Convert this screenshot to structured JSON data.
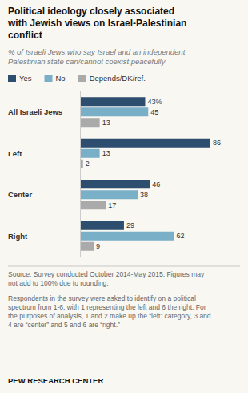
{
  "chart_data": {
    "type": "bar",
    "orientation": "horizontal",
    "title": "Political ideology closely associated\nwith Jewish views on Israel-Palestinian\nconflict",
    "subtitle": "% of Israeli Jews who say Israel and an independent\nPalestinian state can/cannot coexist peacefully",
    "categories": [
      "All Israeli Jews",
      "Left",
      "Center",
      "Right"
    ],
    "series": [
      {
        "name": "Yes",
        "color": "#2d4e6e",
        "values": [
          43,
          86,
          46,
          29
        ],
        "value_labels": [
          "43%",
          "86",
          "46",
          "29"
        ]
      },
      {
        "name": "No",
        "color": "#7aafc8",
        "values": [
          45,
          13,
          38,
          62
        ]
      },
      {
        "name": "Depends/DK/ref.",
        "color": "#aaaaaa",
        "values": [
          13,
          2,
          17,
          9
        ]
      }
    ],
    "xlim": [
      0,
      95
    ],
    "data_labels": true,
    "tick_labels": "y",
    "grid": false,
    "annotations": [
      "Source: Survey conducted October 2014-May 2015. Figures may\nnot add to 100% due to rounding.",
      "Respondents in the survey were asked to identify on a political\nspectrum from 1-6, with 1 representing the left and 6 the right. For\nthe purposes of analysis, 1 and 2 make up the “left” category, 3 and\n4 are “center” and 5 and 6 are “right.”",
      "PEW RESEARCH CENTER"
    ]
  }
}
